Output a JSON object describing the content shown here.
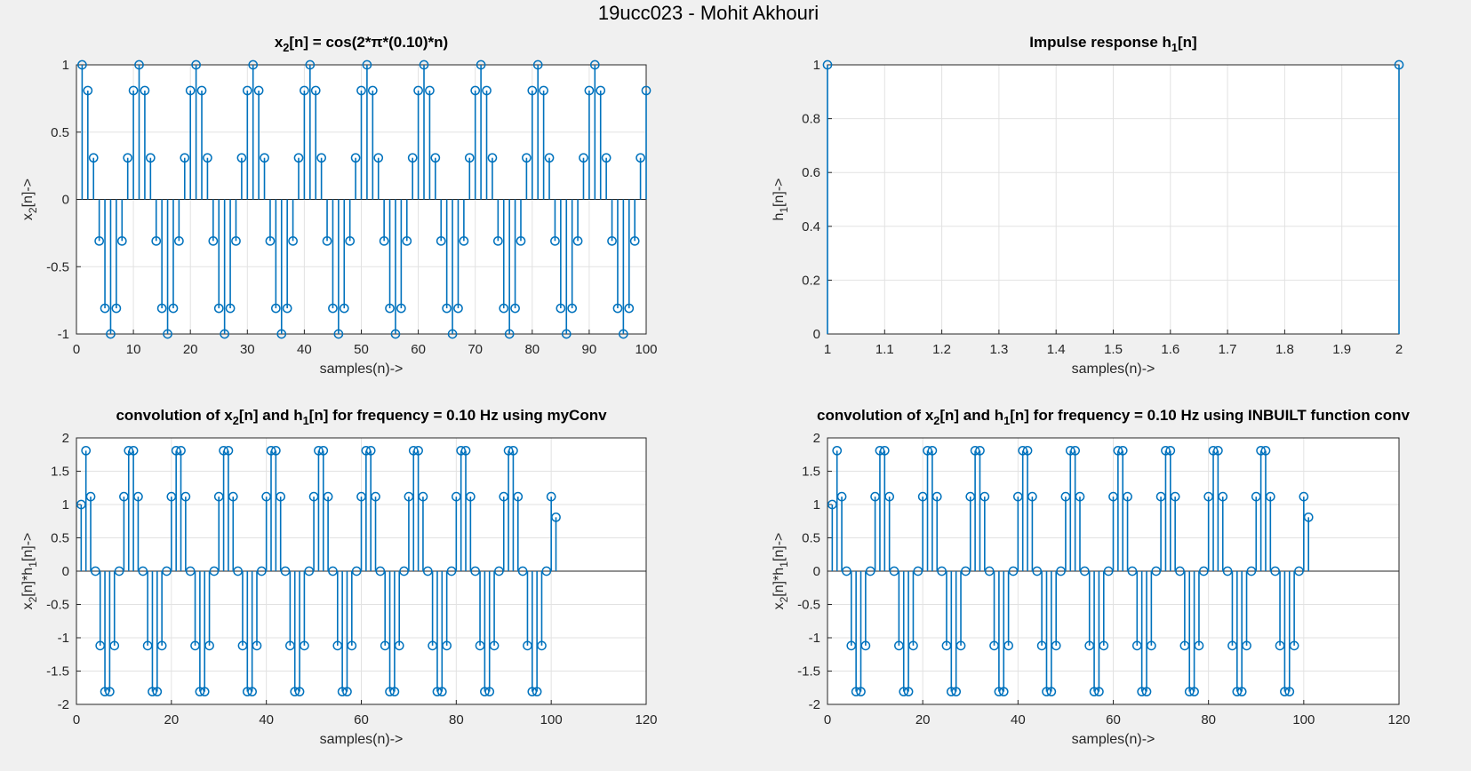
{
  "figure": {
    "title": "19ucc023 - Mohit Akhouri",
    "background": "#f0f0f0",
    "stem_color": "#0072bd"
  },
  "chart_data": [
    {
      "type": "stem",
      "title": "x_2[n] = cos(2*π*(0.10)*n)",
      "xlabel": "samples(n)->",
      "ylabel": "x_2[n]->",
      "xlim": [
        0,
        100
      ],
      "ylim": [
        -1,
        1
      ],
      "xticks": [
        0,
        10,
        20,
        30,
        40,
        50,
        60,
        70,
        80,
        90,
        100
      ],
      "yticks": [
        -1,
        -0.5,
        0,
        0.5,
        1
      ],
      "grid": true,
      "x_start": 1,
      "values": [
        1,
        0.809,
        0.309,
        -0.309,
        -0.809,
        -1,
        -0.809,
        -0.309,
        0.309,
        0.809,
        1,
        0.809,
        0.309,
        -0.309,
        -0.809,
        -1,
        -0.809,
        -0.309,
        0.309,
        0.809,
        1,
        0.809,
        0.309,
        -0.309,
        -0.809,
        -1,
        -0.809,
        -0.309,
        0.309,
        0.809,
        1,
        0.809,
        0.309,
        -0.309,
        -0.809,
        -1,
        -0.809,
        -0.309,
        0.309,
        0.809,
        1,
        0.809,
        0.309,
        -0.309,
        -0.809,
        -1,
        -0.809,
        -0.309,
        0.309,
        0.809,
        1,
        0.809,
        0.309,
        -0.309,
        -0.809,
        -1,
        -0.809,
        -0.309,
        0.309,
        0.809,
        1,
        0.809,
        0.309,
        -0.309,
        -0.809,
        -1,
        -0.809,
        -0.309,
        0.309,
        0.809,
        1,
        0.809,
        0.309,
        -0.309,
        -0.809,
        -1,
        -0.809,
        -0.309,
        0.309,
        0.809,
        1,
        0.809,
        0.309,
        -0.309,
        -0.809,
        -1,
        -0.809,
        -0.309,
        0.309,
        0.809,
        1,
        0.809,
        0.309,
        -0.309,
        -0.809,
        -1,
        -0.809,
        -0.309,
        0.309,
        0.809
      ]
    },
    {
      "type": "stem",
      "title": "Impulse response h_1[n]",
      "xlabel": "samples(n)->",
      "ylabel": "h_1[n]->",
      "xlim": [
        1,
        2
      ],
      "ylim": [
        0,
        1
      ],
      "xticks": [
        1,
        1.1,
        1.2,
        1.3,
        1.4,
        1.5,
        1.6,
        1.7,
        1.8,
        1.9,
        2
      ],
      "yticks": [
        0,
        0.2,
        0.4,
        0.6,
        0.8,
        1
      ],
      "grid": true,
      "x_start": 1,
      "values": [
        1,
        1
      ]
    },
    {
      "type": "stem",
      "title": "convolution of x_2[n] and h_1[n] for frequency = 0.10 Hz using myConv",
      "xlabel": "samples(n)->",
      "ylabel": "x_2[n]*h_1[n]->",
      "xlim": [
        0,
        120
      ],
      "ylim": [
        -2,
        2
      ],
      "xticks": [
        0,
        20,
        40,
        60,
        80,
        100,
        120
      ],
      "yticks": [
        -2,
        -1.5,
        -1,
        -0.5,
        0,
        0.5,
        1,
        1.5,
        2
      ],
      "grid": true,
      "x_start": 1,
      "values": [
        1,
        1.809,
        1.118,
        0,
        -1.118,
        -1.809,
        -1.809,
        -1.118,
        0,
        1.118,
        1.809,
        1.809,
        1.118,
        0,
        -1.118,
        -1.809,
        -1.809,
        -1.118,
        0,
        1.118,
        1.809,
        1.809,
        1.118,
        0,
        -1.118,
        -1.809,
        -1.809,
        -1.118,
        0,
        1.118,
        1.809,
        1.809,
        1.118,
        0,
        -1.118,
        -1.809,
        -1.809,
        -1.118,
        0,
        1.118,
        1.809,
        1.809,
        1.118,
        0,
        -1.118,
        -1.809,
        -1.809,
        -1.118,
        0,
        1.118,
        1.809,
        1.809,
        1.118,
        0,
        -1.118,
        -1.809,
        -1.809,
        -1.118,
        0,
        1.118,
        1.809,
        1.809,
        1.118,
        0,
        -1.118,
        -1.809,
        -1.809,
        -1.118,
        0,
        1.118,
        1.809,
        1.809,
        1.118,
        0,
        -1.118,
        -1.809,
        -1.809,
        -1.118,
        0,
        1.118,
        1.809,
        1.809,
        1.118,
        0,
        -1.118,
        -1.809,
        -1.809,
        -1.118,
        0,
        1.118,
        1.809,
        1.809,
        1.118,
        0,
        -1.118,
        -1.809,
        -1.809,
        -1.118,
        0,
        1.118,
        0.809
      ]
    },
    {
      "type": "stem",
      "title": "convolution of x_2[n] and h_1[n] for frequency = 0.10 Hz using INBUILT function conv",
      "xlabel": "samples(n)->",
      "ylabel": "x_2[n]*h_1[n]->",
      "xlim": [
        0,
        120
      ],
      "ylim": [
        -2,
        2
      ],
      "xticks": [
        0,
        20,
        40,
        60,
        80,
        100,
        120
      ],
      "yticks": [
        -2,
        -1.5,
        -1,
        -0.5,
        0,
        0.5,
        1,
        1.5,
        2
      ],
      "grid": true,
      "x_start": 1,
      "values": [
        1,
        1.809,
        1.118,
        0,
        -1.118,
        -1.809,
        -1.809,
        -1.118,
        0,
        1.118,
        1.809,
        1.809,
        1.118,
        0,
        -1.118,
        -1.809,
        -1.809,
        -1.118,
        0,
        1.118,
        1.809,
        1.809,
        1.118,
        0,
        -1.118,
        -1.809,
        -1.809,
        -1.118,
        0,
        1.118,
        1.809,
        1.809,
        1.118,
        0,
        -1.118,
        -1.809,
        -1.809,
        -1.118,
        0,
        1.118,
        1.809,
        1.809,
        1.118,
        0,
        -1.118,
        -1.809,
        -1.809,
        -1.118,
        0,
        1.118,
        1.809,
        1.809,
        1.118,
        0,
        -1.118,
        -1.809,
        -1.809,
        -1.118,
        0,
        1.118,
        1.809,
        1.809,
        1.118,
        0,
        -1.118,
        -1.809,
        -1.809,
        -1.118,
        0,
        1.118,
        1.809,
        1.809,
        1.118,
        0,
        -1.118,
        -1.809,
        -1.809,
        -1.118,
        0,
        1.118,
        1.809,
        1.809,
        1.118,
        0,
        -1.118,
        -1.809,
        -1.809,
        -1.118,
        0,
        1.118,
        1.809,
        1.809,
        1.118,
        0,
        -1.118,
        -1.809,
        -1.809,
        -1.118,
        0,
        1.118,
        0.809
      ]
    }
  ]
}
